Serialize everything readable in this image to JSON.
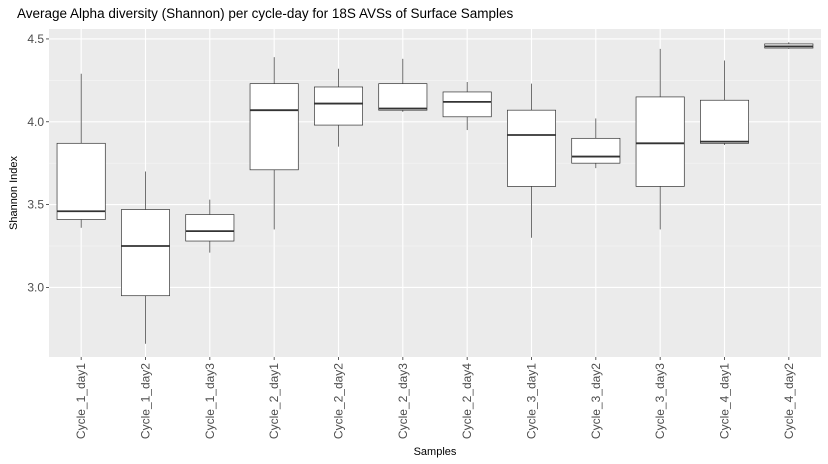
{
  "chart_data": {
    "type": "boxplot",
    "title": "Average Alpha diversity (Shannon) per cycle-day for 18S AVSs of Surface Samples",
    "xlabel": "Samples",
    "ylabel": "Shannon Index",
    "ylim": [
      2.58,
      4.56
    ],
    "yticks": [
      3.0,
      3.5,
      4.0,
      4.5
    ],
    "ytick_labels": [
      "3.0",
      "3.5",
      "4.0",
      "4.5"
    ],
    "grid": true,
    "categories": [
      "Cycle_1_day1",
      "Cycle_1_day2",
      "Cycle_1_day3",
      "Cycle_2_day1",
      "Cycle_2_day2",
      "Cycle_2_day3",
      "Cycle_2_day4",
      "Cycle_3_day1",
      "Cycle_3_day2",
      "Cycle_3_day3",
      "Cycle_4_day1",
      "Cycle_4_day2"
    ],
    "boxes": [
      {
        "min": 3.36,
        "q1": 3.41,
        "median": 3.46,
        "q3": 3.87,
        "max": 4.29
      },
      {
        "min": 2.66,
        "q1": 2.95,
        "median": 3.25,
        "q3": 3.47,
        "max": 3.7
      },
      {
        "min": 3.21,
        "q1": 3.28,
        "median": 3.34,
        "q3": 3.44,
        "max": 3.53
      },
      {
        "min": 3.35,
        "q1": 3.71,
        "median": 4.07,
        "q3": 4.23,
        "max": 4.39
      },
      {
        "min": 3.85,
        "q1": 3.98,
        "median": 4.11,
        "q3": 4.21,
        "max": 4.32
      },
      {
        "min": 4.06,
        "q1": 4.07,
        "median": 4.08,
        "q3": 4.23,
        "max": 4.38
      },
      {
        "min": 3.95,
        "q1": 4.03,
        "median": 4.12,
        "q3": 4.18,
        "max": 4.24
      },
      {
        "min": 3.3,
        "q1": 3.61,
        "median": 3.92,
        "q3": 4.07,
        "max": 4.23
      },
      {
        "min": 3.72,
        "q1": 3.75,
        "median": 3.79,
        "q3": 3.9,
        "max": 4.02
      },
      {
        "min": 3.35,
        "q1": 3.61,
        "median": 3.87,
        "q3": 4.15,
        "max": 4.44
      },
      {
        "min": 3.86,
        "q1": 3.87,
        "median": 3.88,
        "q3": 4.13,
        "max": 4.37
      },
      {
        "min": 4.44,
        "q1": 4.445,
        "median": 4.455,
        "q3": 4.47,
        "max": 4.48
      }
    ]
  }
}
